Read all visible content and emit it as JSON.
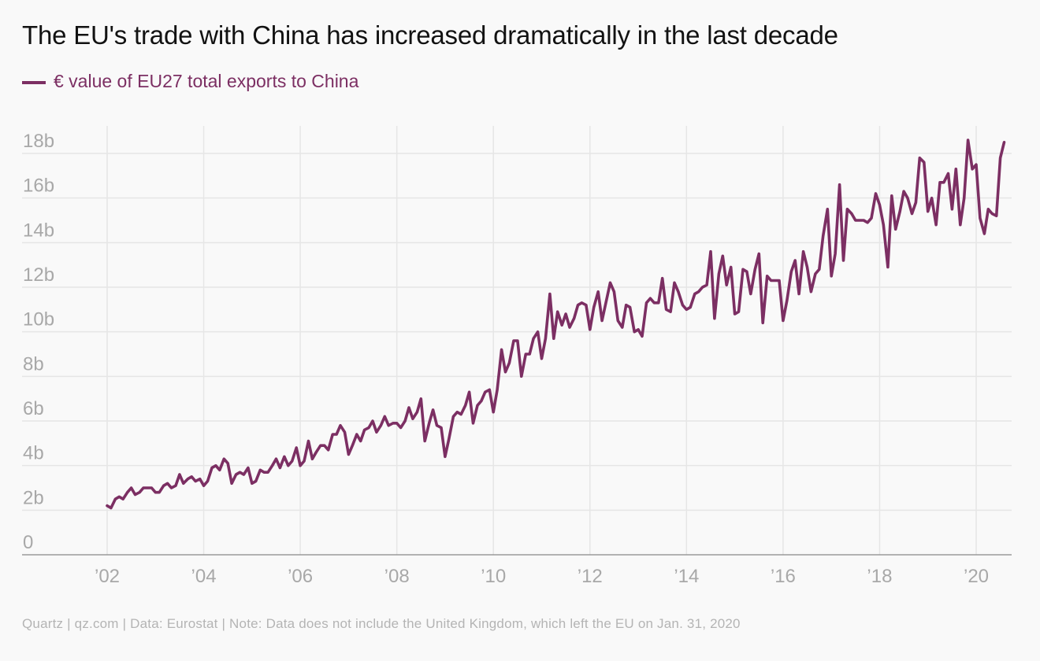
{
  "title": "The EU's trade with China has increased dramatically in the last decade",
  "footer": "Quartz | qz.com | Data: Eurostat | Note: Data does not include the United Kingdom, which left the EU on Jan. 31, 2020",
  "colors": {
    "series": "#7c2f63",
    "grid": "#e6e6e6",
    "axis": "#9a9a9a",
    "tick_text": "#a8a8a8",
    "background": "#f9f9f9"
  },
  "chart_data": {
    "type": "line",
    "title": "The EU's trade with China has increased dramatically in the last decade",
    "xlabel": "",
    "ylabel": "",
    "xlim": [
      2000.25,
      2020.75
    ],
    "ylim": [
      0,
      18
    ],
    "grid": true,
    "legend_position": "top-left",
    "x_ticks": [
      2002,
      2004,
      2006,
      2008,
      2010,
      2012,
      2014,
      2016,
      2018,
      2020
    ],
    "x_tick_labels": [
      "’02",
      "’04",
      "’06",
      "’08",
      "’10",
      "’12",
      "’14",
      "’16",
      "’18",
      "’20"
    ],
    "y_ticks": [
      0,
      2,
      4,
      6,
      8,
      10,
      12,
      14,
      16,
      18
    ],
    "y_tick_labels": [
      "0",
      "2b",
      "4b",
      "6b",
      "8b",
      "10b",
      "12b",
      "14b",
      "16b",
      "18b"
    ],
    "series": [
      {
        "name": "€ value of EU27 total exports to China",
        "color": "#7c2f63",
        "points": [
          [
            2002.0,
            2.2
          ],
          [
            2002.08,
            2.1
          ],
          [
            2002.17,
            2.5
          ],
          [
            2002.25,
            2.6
          ],
          [
            2002.33,
            2.5
          ],
          [
            2002.42,
            2.8
          ],
          [
            2002.5,
            3.0
          ],
          [
            2002.58,
            2.7
          ],
          [
            2002.67,
            2.8
          ],
          [
            2002.75,
            3.0
          ],
          [
            2002.83,
            3.0
          ],
          [
            2002.92,
            3.0
          ],
          [
            2003.0,
            2.8
          ],
          [
            2003.08,
            2.8
          ],
          [
            2003.17,
            3.1
          ],
          [
            2003.25,
            3.2
          ],
          [
            2003.33,
            3.0
          ],
          [
            2003.42,
            3.1
          ],
          [
            2003.5,
            3.6
          ],
          [
            2003.58,
            3.2
          ],
          [
            2003.67,
            3.4
          ],
          [
            2003.75,
            3.5
          ],
          [
            2003.83,
            3.3
          ],
          [
            2003.92,
            3.4
          ],
          [
            2004.0,
            3.1
          ],
          [
            2004.08,
            3.3
          ],
          [
            2004.17,
            3.9
          ],
          [
            2004.25,
            4.0
          ],
          [
            2004.33,
            3.8
          ],
          [
            2004.42,
            4.3
          ],
          [
            2004.5,
            4.1
          ],
          [
            2004.58,
            3.2
          ],
          [
            2004.67,
            3.6
          ],
          [
            2004.75,
            3.7
          ],
          [
            2004.83,
            3.6
          ],
          [
            2004.92,
            3.9
          ],
          [
            2005.0,
            3.2
          ],
          [
            2005.08,
            3.3
          ],
          [
            2005.17,
            3.8
          ],
          [
            2005.25,
            3.7
          ],
          [
            2005.33,
            3.7
          ],
          [
            2005.42,
            4.0
          ],
          [
            2005.5,
            4.3
          ],
          [
            2005.58,
            3.9
          ],
          [
            2005.67,
            4.4
          ],
          [
            2005.75,
            4.0
          ],
          [
            2005.83,
            4.2
          ],
          [
            2005.92,
            4.8
          ],
          [
            2006.0,
            4.0
          ],
          [
            2006.08,
            4.2
          ],
          [
            2006.17,
            5.1
          ],
          [
            2006.25,
            4.3
          ],
          [
            2006.33,
            4.6
          ],
          [
            2006.42,
            4.9
          ],
          [
            2006.5,
            4.9
          ],
          [
            2006.58,
            4.7
          ],
          [
            2006.67,
            5.4
          ],
          [
            2006.75,
            5.4
          ],
          [
            2006.83,
            5.8
          ],
          [
            2006.92,
            5.5
          ],
          [
            2007.0,
            4.5
          ],
          [
            2007.08,
            4.9
          ],
          [
            2007.17,
            5.4
          ],
          [
            2007.25,
            5.1
          ],
          [
            2007.33,
            5.6
          ],
          [
            2007.42,
            5.7
          ],
          [
            2007.5,
            6.0
          ],
          [
            2007.58,
            5.5
          ],
          [
            2007.67,
            5.8
          ],
          [
            2007.75,
            6.2
          ],
          [
            2007.83,
            5.8
          ],
          [
            2007.92,
            5.9
          ],
          [
            2008.0,
            5.9
          ],
          [
            2008.08,
            5.7
          ],
          [
            2008.17,
            6.0
          ],
          [
            2008.25,
            6.6
          ],
          [
            2008.33,
            6.1
          ],
          [
            2008.42,
            6.4
          ],
          [
            2008.5,
            7.0
          ],
          [
            2008.58,
            5.1
          ],
          [
            2008.67,
            5.9
          ],
          [
            2008.75,
            6.5
          ],
          [
            2008.83,
            5.8
          ],
          [
            2008.92,
            5.7
          ],
          [
            2009.0,
            4.4
          ],
          [
            2009.08,
            5.2
          ],
          [
            2009.17,
            6.2
          ],
          [
            2009.25,
            6.4
          ],
          [
            2009.33,
            6.3
          ],
          [
            2009.42,
            6.7
          ],
          [
            2009.5,
            7.3
          ],
          [
            2009.58,
            5.9
          ],
          [
            2009.67,
            6.7
          ],
          [
            2009.75,
            6.9
          ],
          [
            2009.83,
            7.3
          ],
          [
            2009.92,
            7.4
          ],
          [
            2010.0,
            6.4
          ],
          [
            2010.08,
            7.4
          ],
          [
            2010.17,
            9.2
          ],
          [
            2010.25,
            8.2
          ],
          [
            2010.33,
            8.6
          ],
          [
            2010.42,
            9.6
          ],
          [
            2010.5,
            9.6
          ],
          [
            2010.58,
            8.0
          ],
          [
            2010.67,
            9.0
          ],
          [
            2010.75,
            9.0
          ],
          [
            2010.83,
            9.7
          ],
          [
            2010.92,
            10.0
          ],
          [
            2011.0,
            8.8
          ],
          [
            2011.08,
            9.7
          ],
          [
            2011.17,
            11.7
          ],
          [
            2011.25,
            9.7
          ],
          [
            2011.33,
            10.9
          ],
          [
            2011.42,
            10.3
          ],
          [
            2011.5,
            10.8
          ],
          [
            2011.58,
            10.2
          ],
          [
            2011.67,
            10.6
          ],
          [
            2011.75,
            11.2
          ],
          [
            2011.83,
            11.3
          ],
          [
            2011.92,
            11.2
          ],
          [
            2012.0,
            10.1
          ],
          [
            2012.08,
            11.1
          ],
          [
            2012.17,
            11.8
          ],
          [
            2012.25,
            10.5
          ],
          [
            2012.33,
            11.3
          ],
          [
            2012.42,
            12.2
          ],
          [
            2012.5,
            11.8
          ],
          [
            2012.58,
            10.5
          ],
          [
            2012.67,
            10.2
          ],
          [
            2012.75,
            11.2
          ],
          [
            2012.83,
            11.1
          ],
          [
            2012.92,
            10.0
          ],
          [
            2013.0,
            10.1
          ],
          [
            2013.08,
            9.8
          ],
          [
            2013.17,
            11.3
          ],
          [
            2013.25,
            11.5
          ],
          [
            2013.33,
            11.3
          ],
          [
            2013.42,
            11.3
          ],
          [
            2013.5,
            12.4
          ],
          [
            2013.58,
            11.0
          ],
          [
            2013.67,
            10.9
          ],
          [
            2013.75,
            12.2
          ],
          [
            2013.83,
            11.8
          ],
          [
            2013.92,
            11.2
          ],
          [
            2014.0,
            11.0
          ],
          [
            2014.08,
            11.1
          ],
          [
            2014.17,
            11.7
          ],
          [
            2014.25,
            11.8
          ],
          [
            2014.33,
            12.0
          ],
          [
            2014.42,
            12.1
          ],
          [
            2014.5,
            13.6
          ],
          [
            2014.58,
            10.6
          ],
          [
            2014.67,
            12.6
          ],
          [
            2014.75,
            13.4
          ],
          [
            2014.83,
            12.1
          ],
          [
            2014.92,
            12.9
          ],
          [
            2015.0,
            10.8
          ],
          [
            2015.08,
            10.9
          ],
          [
            2015.17,
            12.8
          ],
          [
            2015.25,
            12.7
          ],
          [
            2015.33,
            11.7
          ],
          [
            2015.42,
            12.8
          ],
          [
            2015.5,
            13.5
          ],
          [
            2015.58,
            10.4
          ],
          [
            2015.67,
            12.5
          ],
          [
            2015.75,
            12.3
          ],
          [
            2015.83,
            12.3
          ],
          [
            2015.92,
            12.3
          ],
          [
            2016.0,
            10.5
          ],
          [
            2016.08,
            11.4
          ],
          [
            2016.17,
            12.7
          ],
          [
            2016.25,
            13.2
          ],
          [
            2016.33,
            11.7
          ],
          [
            2016.42,
            13.6
          ],
          [
            2016.5,
            12.9
          ],
          [
            2016.58,
            11.8
          ],
          [
            2016.67,
            12.6
          ],
          [
            2016.75,
            12.8
          ],
          [
            2016.83,
            14.3
          ],
          [
            2016.92,
            15.5
          ],
          [
            2017.0,
            12.5
          ],
          [
            2017.08,
            13.5
          ],
          [
            2017.17,
            16.6
          ],
          [
            2017.25,
            13.2
          ],
          [
            2017.33,
            15.5
          ],
          [
            2017.42,
            15.3
          ],
          [
            2017.5,
            15.0
          ],
          [
            2017.58,
            15.0
          ],
          [
            2017.67,
            15.0
          ],
          [
            2017.75,
            14.9
          ],
          [
            2017.83,
            15.1
          ],
          [
            2017.92,
            16.2
          ],
          [
            2018.0,
            15.7
          ],
          [
            2018.08,
            14.8
          ],
          [
            2018.17,
            12.9
          ],
          [
            2018.25,
            16.1
          ],
          [
            2018.33,
            14.6
          ],
          [
            2018.42,
            15.4
          ],
          [
            2018.5,
            16.3
          ],
          [
            2018.58,
            16.0
          ],
          [
            2018.67,
            15.3
          ],
          [
            2018.75,
            15.8
          ],
          [
            2018.83,
            17.8
          ],
          [
            2018.92,
            17.6
          ],
          [
            2019.0,
            15.4
          ],
          [
            2019.08,
            16.0
          ],
          [
            2019.17,
            14.8
          ],
          [
            2019.25,
            16.7
          ],
          [
            2019.33,
            16.7
          ],
          [
            2019.42,
            17.1
          ],
          [
            2019.5,
            15.5
          ],
          [
            2019.58,
            17.3
          ],
          [
            2019.67,
            14.8
          ],
          [
            2019.75,
            16.0
          ],
          [
            2019.83,
            18.6
          ],
          [
            2019.92,
            17.3
          ],
          [
            2020.0,
            17.5
          ],
          [
            2020.08,
            15.1
          ],
          [
            2020.17,
            14.4
          ],
          [
            2020.25,
            15.5
          ],
          [
            2020.33,
            15.3
          ],
          [
            2020.42,
            15.2
          ],
          [
            2020.5,
            17.8
          ],
          [
            2020.58,
            18.5
          ]
        ]
      }
    ]
  }
}
